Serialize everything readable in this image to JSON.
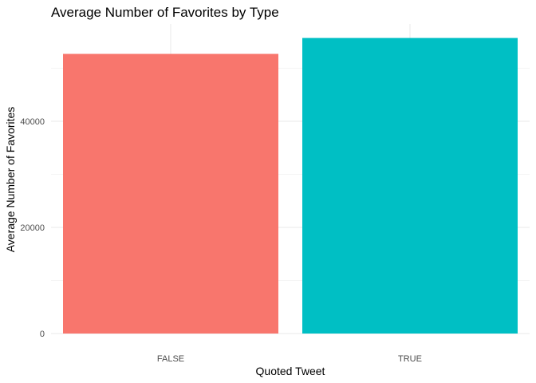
{
  "chart_data": {
    "type": "bar",
    "title": "Average Number of Favorites by Type",
    "xlabel": "Quoted Tweet",
    "ylabel": "Average Number of Favorites",
    "categories": [
      "FALSE",
      "TRUE"
    ],
    "values": [
      52700,
      55700
    ],
    "colors": [
      "#F8766D",
      "#00BFC4"
    ],
    "yticks": [
      0,
      20000,
      40000
    ],
    "ytick_labels": [
      "0",
      "20000",
      "40000"
    ],
    "ylim": [
      0,
      58000
    ],
    "grid": true,
    "legend": "none"
  }
}
